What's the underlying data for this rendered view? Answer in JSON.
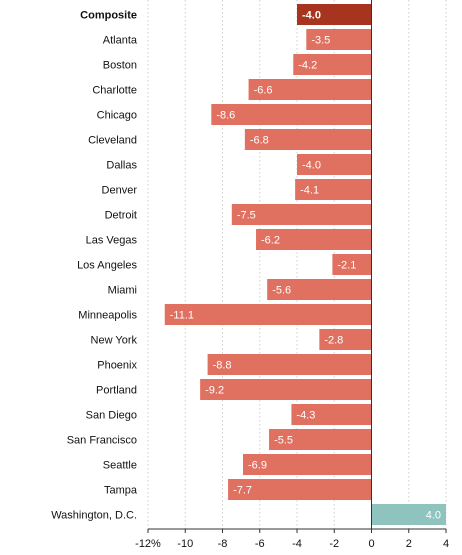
{
  "chart_data": {
    "type": "bar",
    "orientation": "horizontal",
    "title": "",
    "xlabel": "",
    "ylabel": "",
    "xlim": [
      -12,
      4
    ],
    "x_ticks": [
      -12,
      -10,
      -8,
      -6,
      -4,
      -2,
      0,
      2,
      4
    ],
    "x_tick_labels": [
      "-12%",
      "-10",
      "-8",
      "-6",
      "-4",
      "-2",
      "0",
      "2",
      "4"
    ],
    "grid": true,
    "colors": {
      "highlight": "#a6341e",
      "negative": "#e07060",
      "positive": "#8fc3bd"
    },
    "categories": [
      "Composite",
      "Atlanta",
      "Boston",
      "Charlotte",
      "Chicago",
      "Cleveland",
      "Dallas",
      "Denver",
      "Detroit",
      "Las Vegas",
      "Los Angeles",
      "Miami",
      "Minneapolis",
      "New York",
      "Phoenix",
      "Portland",
      "San Diego",
      "San Francisco",
      "Seattle",
      "Tampa",
      "Washington, D.C."
    ],
    "values": [
      -4.0,
      -3.5,
      -4.2,
      -6.6,
      -8.6,
      -6.8,
      -4.0,
      -4.1,
      -7.5,
      -6.2,
      -2.1,
      -5.6,
      -11.1,
      -2.8,
      -8.8,
      -9.2,
      -4.3,
      -5.5,
      -6.9,
      -7.7,
      4.0
    ],
    "value_labels": [
      "-4.0",
      "-3.5",
      "-4.2",
      "-6.6",
      "-8.6",
      "-6.8",
      "-4.0",
      "-4.1",
      "-7.5",
      "-6.2",
      "-2.1",
      "-5.6",
      "-11.1",
      "-2.8",
      "-8.8",
      "-9.2",
      "-4.3",
      "-5.5",
      "-6.9",
      "-7.7",
      "4.0"
    ],
    "highlighted": [
      "Composite"
    ]
  }
}
